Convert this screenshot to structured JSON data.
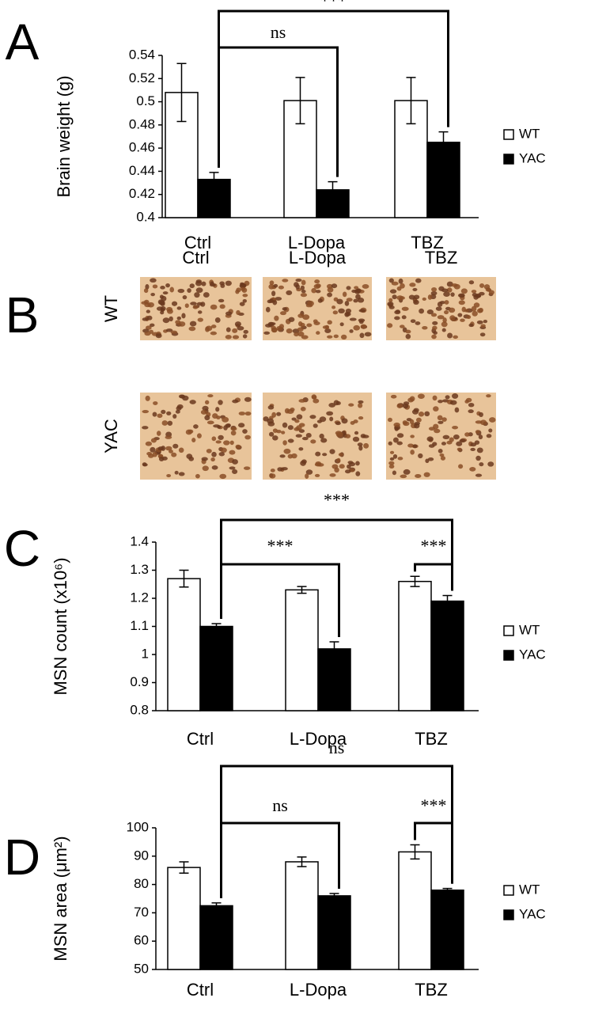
{
  "panels": [
    "A",
    "B",
    "C",
    "D"
  ],
  "image_grid": {
    "columns": [
      "Ctrl",
      "L-Dopa",
      "TBZ"
    ],
    "rows": [
      "WT",
      "YAC"
    ]
  },
  "chart_data": [
    {
      "type": "bar",
      "ylabel": "Brain weight (g)",
      "categories": [
        "Ctrl",
        "L-Dopa",
        "TBZ"
      ],
      "series": [
        {
          "name": "WT",
          "color": "#ffffff",
          "values": [
            0.508,
            0.501,
            0.501
          ],
          "errors": [
            0.025,
            0.02,
            0.02
          ]
        },
        {
          "name": "YAC",
          "color": "#000000",
          "values": [
            0.433,
            0.424,
            0.465
          ],
          "errors": [
            0.006,
            0.007,
            0.009
          ]
        }
      ],
      "ylim": [
        0.4,
        0.54
      ],
      "yticks": [
        0.4,
        0.42,
        0.44,
        0.46,
        0.48,
        0.5,
        0.52,
        0.54
      ],
      "comparisons": [
        {
          "label": "***",
          "from": [
            0,
            1
          ],
          "to": [
            2,
            1
          ]
        },
        {
          "label": "ns",
          "from": [
            0,
            1
          ],
          "to": [
            1,
            1
          ]
        }
      ]
    },
    {
      "type": "bar",
      "ylabel": "MSN count (x10⁶)",
      "categories": [
        "Ctrl",
        "L-Dopa",
        "TBZ"
      ],
      "series": [
        {
          "name": "WT",
          "color": "#ffffff",
          "values": [
            1.27,
            1.23,
            1.26
          ],
          "errors": [
            0.03,
            0.012,
            0.018
          ]
        },
        {
          "name": "YAC",
          "color": "#000000",
          "values": [
            1.1,
            1.02,
            1.19
          ],
          "errors": [
            0.01,
            0.025,
            0.02
          ]
        }
      ],
      "ylim": [
        0.8,
        1.4
      ],
      "yticks": [
        0.8,
        0.9,
        1,
        1.1,
        1.2,
        1.3,
        1.4
      ],
      "comparisons": [
        {
          "label": "***",
          "from": [
            0,
            1
          ],
          "to": [
            2,
            1
          ]
        },
        {
          "label": "***",
          "from": [
            0,
            1
          ],
          "to": [
            1,
            1
          ]
        },
        {
          "label": "***",
          "from": [
            2,
            0
          ],
          "to": [
            2,
            1
          ]
        }
      ]
    },
    {
      "type": "bar",
      "ylabel": "MSN area (μm²)",
      "categories": [
        "Ctrl",
        "L-Dopa",
        "TBZ"
      ],
      "series": [
        {
          "name": "WT",
          "color": "#ffffff",
          "values": [
            86,
            88,
            91.5
          ],
          "errors": [
            2,
            1.7,
            2.5
          ]
        },
        {
          "name": "YAC",
          "color": "#000000",
          "values": [
            72.5,
            76,
            78
          ],
          "errors": [
            1,
            0.8,
            0.6
          ]
        }
      ],
      "ylim": [
        50,
        100
      ],
      "yticks": [
        50,
        60,
        70,
        80,
        90,
        100
      ],
      "comparisons": [
        {
          "label": "ns",
          "from": [
            0,
            1
          ],
          "to": [
            2,
            1
          ]
        },
        {
          "label": "ns",
          "from": [
            0,
            1
          ],
          "to": [
            1,
            1
          ]
        },
        {
          "label": "***",
          "from": [
            2,
            0
          ],
          "to": [
            2,
            1
          ]
        }
      ]
    }
  ]
}
